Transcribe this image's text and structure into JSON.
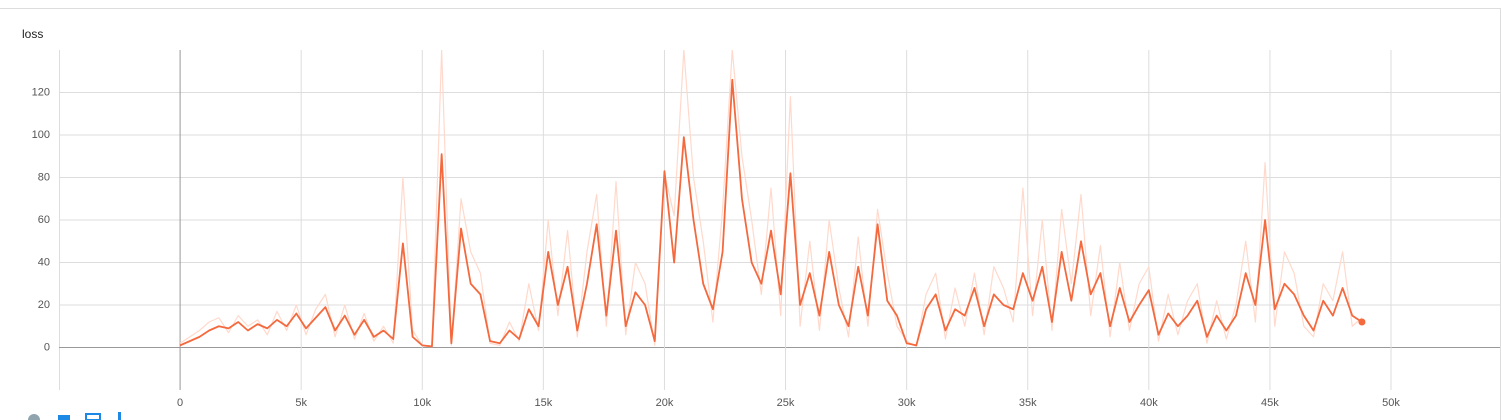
{
  "chart_data": {
    "type": "line",
    "title": "loss",
    "x": [
      0,
      400,
      800,
      1200,
      1600,
      2000,
      2400,
      2800,
      3200,
      3600,
      4000,
      4400,
      4800,
      5200,
      5600,
      6000,
      6400,
      6800,
      7200,
      7600,
      8000,
      8400,
      8800,
      9200,
      9600,
      10000,
      10400,
      10800,
      11200,
      11600,
      12000,
      12400,
      12800,
      13200,
      13600,
      14000,
      14400,
      14800,
      15200,
      15600,
      16000,
      16400,
      16800,
      17200,
      17600,
      18000,
      18400,
      18800,
      19200,
      19600,
      20000,
      20400,
      20800,
      21200,
      21600,
      22000,
      22400,
      22800,
      23200,
      23600,
      24000,
      24400,
      24800,
      25200,
      25600,
      26000,
      26400,
      26800,
      27200,
      27600,
      28000,
      28400,
      28800,
      29200,
      29600,
      30000,
      30400,
      30800,
      31200,
      31600,
      32000,
      32400,
      32800,
      33200,
      33600,
      34000,
      34400,
      34800,
      35200,
      35600,
      36000,
      36400,
      36800,
      37200,
      37600,
      38000,
      38400,
      38800,
      39200,
      39600,
      40000,
      40400,
      40800,
      41200,
      41600,
      42000,
      42400,
      42800,
      43200,
      43600,
      44000,
      44400,
      44800,
      45200,
      45600,
      46000,
      46400,
      46800,
      47200,
      47600,
      48000,
      48400,
      48800
    ],
    "series": [
      {
        "color": "#ffd9cc",
        "values": [
          2,
          5,
          8,
          12,
          14,
          7,
          15,
          10,
          13,
          6,
          17,
          8,
          20,
          6,
          18,
          25,
          5,
          20,
          4,
          16,
          3,
          10,
          2,
          80,
          8,
          1,
          0.3,
          140,
          1,
          70,
          45,
          35,
          2,
          1,
          12,
          3,
          30,
          8,
          60,
          15,
          55,
          5,
          45,
          72,
          10,
          78,
          6,
          40,
          30,
          1,
          82,
          62,
          140,
          80,
          50,
          12,
          65,
          140,
          90,
          60,
          25,
          75,
          15,
          118,
          10,
          50,
          8,
          60,
          28,
          5,
          52,
          10,
          65,
          35,
          10,
          3,
          0.5,
          25,
          35,
          4,
          28,
          10,
          35,
          6,
          38,
          28,
          12,
          75,
          15,
          60,
          8,
          65,
          30,
          72,
          15,
          48,
          5,
          40,
          8,
          30,
          38,
          3,
          25,
          6,
          22,
          30,
          2,
          22,
          4,
          20,
          50,
          12,
          87,
          10,
          45,
          35,
          10,
          5,
          30,
          22,
          45,
          10,
          14
        ]
      },
      {
        "color": "#f4693d",
        "values": [
          1,
          3,
          5,
          8,
          10,
          9,
          12,
          8,
          11,
          9,
          13,
          10,
          16,
          9,
          14,
          19,
          8,
          15,
          6,
          13,
          5,
          8,
          4,
          49,
          5,
          1,
          0.5,
          91,
          2,
          56,
          30,
          25,
          3,
          2,
          8,
          4,
          18,
          10,
          45,
          20,
          38,
          8,
          30,
          58,
          15,
          55,
          10,
          26,
          20,
          3,
          83,
          40,
          99,
          60,
          30,
          18,
          45,
          126,
          70,
          40,
          30,
          55,
          25,
          82,
          20,
          35,
          15,
          45,
          20,
          10,
          38,
          15,
          58,
          22,
          15,
          2,
          1,
          18,
          25,
          8,
          18,
          15,
          28,
          10,
          25,
          20,
          18,
          35,
          22,
          38,
          12,
          45,
          22,
          50,
          25,
          35,
          10,
          28,
          12,
          20,
          27,
          6,
          16,
          10,
          15,
          22,
          5,
          15,
          8,
          15,
          35,
          20,
          60,
          18,
          30,
          25,
          15,
          8,
          22,
          15,
          28,
          15,
          12
        ]
      }
    ],
    "xlim": [
      -5000,
      54500
    ],
    "ylim": [
      -20,
      140
    ],
    "xticks": [
      0,
      {
        "value": 5000,
        "label": "5k"
      },
      {
        "value": 10000,
        "label": "10k"
      },
      {
        "value": 15000,
        "label": "15k"
      },
      {
        "value": 20000,
        "label": "20k"
      },
      {
        "value": 25000,
        "label": "25k"
      },
      {
        "value": 30000,
        "label": "30k"
      },
      {
        "value": 35000,
        "label": "35k"
      },
      {
        "value": 40000,
        "label": "40k"
      },
      {
        "value": 45000,
        "label": "45k"
      },
      {
        "value": 50000,
        "label": "50k"
      }
    ],
    "yticks": [
      0,
      20,
      40,
      60,
      80,
      100,
      120
    ],
    "grid": true
  }
}
